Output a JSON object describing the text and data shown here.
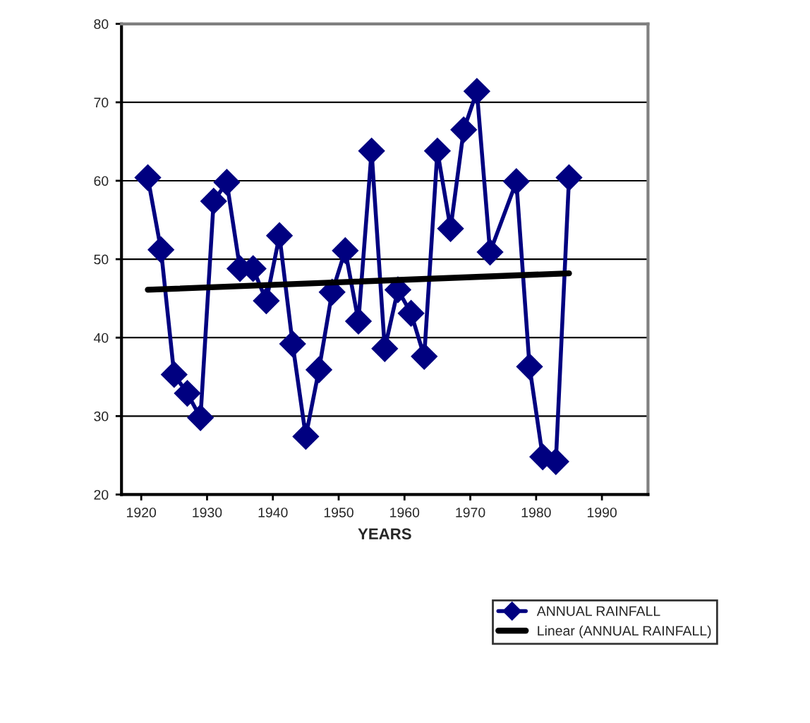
{
  "chart_data": {
    "type": "line",
    "xlabel": "YEARS",
    "xlim": [
      1917,
      1997
    ],
    "xticks": [
      1920,
      1930,
      1940,
      1950,
      1960,
      1970,
      1980,
      1990
    ],
    "ylim": [
      20,
      80
    ],
    "yticks": [
      20,
      30,
      40,
      50,
      60,
      70,
      80
    ],
    "grid": "y",
    "legend": "bottom right",
    "marker": "diamond",
    "line_style": "solid",
    "series": [
      {
        "name": "ANNUAL RAINFALL",
        "color": "#000080",
        "x": [
          1921,
          1923,
          1925,
          1927,
          1929,
          1931,
          1933,
          1935,
          1937,
          1939,
          1941,
          1943,
          1945,
          1947,
          1949,
          1951,
          1953,
          1955,
          1957,
          1959,
          1961,
          1963,
          1965,
          1967,
          1969,
          1971,
          1973,
          1977,
          1979,
          1981,
          1983,
          1985
        ],
        "values": [
          60.4,
          51.2,
          35.3,
          32.9,
          29.8,
          57.4,
          59.8,
          48.8,
          48.8,
          44.7,
          53.0,
          39.2,
          27.4,
          35.9,
          45.8,
          51.1,
          42.1,
          63.8,
          38.6,
          46.1,
          43.1,
          37.6,
          63.8,
          53.9,
          66.5,
          71.4,
          50.9,
          59.9,
          36.3,
          24.8,
          24.2,
          60.4
        ]
      },
      {
        "name": "Linear (ANNUAL RAINFALL)",
        "color": "#000000",
        "type": "line",
        "marker": "none",
        "x": [
          1921,
          1985
        ],
        "values": [
          46.1,
          48.2
        ]
      }
    ]
  }
}
